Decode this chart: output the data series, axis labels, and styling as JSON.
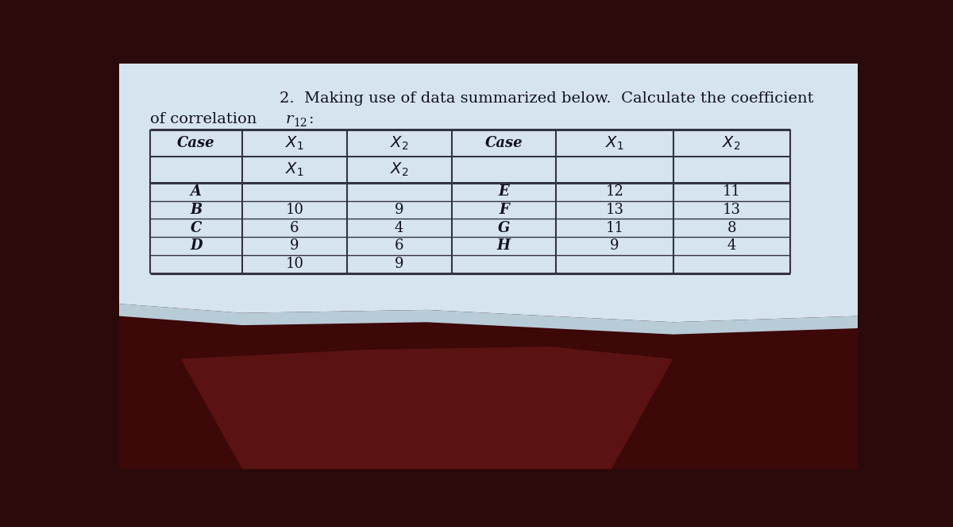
{
  "title_line1": "2.  Making use of data summarized below.  Calculate the coefficient",
  "title_line2_a": "of correlation ",
  "title_line2_r": "r",
  "title_line2_sub": "12",
  "title_line2_colon": ":",
  "col_headers_row1": [
    "Case",
    "X₁",
    "X₂",
    "Case",
    "X₁",
    "X₂"
  ],
  "row_data": [
    [
      "A",
      "",
      "",
      "E",
      "12",
      "11"
    ],
    [
      "B",
      "10",
      "9",
      "F",
      "13",
      "13"
    ],
    [
      "C",
      "6",
      "4",
      "G",
      "11",
      "8"
    ],
    [
      "D",
      "9",
      "6",
      "H",
      "9",
      "4"
    ],
    [
      "",
      "10",
      "9",
      "",
      "",
      ""
    ]
  ],
  "paper_color": "#ccd9e8",
  "page_color": "#d6e4f0",
  "table_line_color": "#333344",
  "text_color": "#111122",
  "bottom_color": "#2a0a0a",
  "bottom_mid_color": "#4a1515"
}
